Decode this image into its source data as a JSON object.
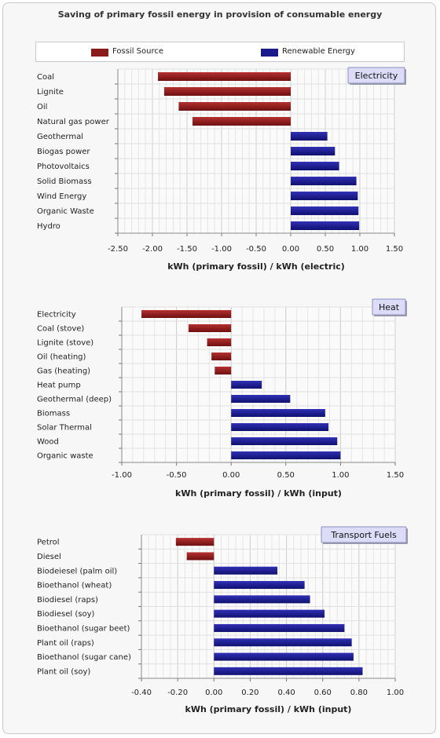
{
  "title": "Saving of primary fossil energy in provision of consumable energy",
  "legend": {
    "fossil": "Fossil Source",
    "renewable": "Renewable Energy"
  },
  "colors": {
    "fossil": "#8b1a1a",
    "renewable": "#1a1a8b"
  },
  "chart_data": [
    {
      "type": "bar",
      "orientation": "horizontal",
      "panel_label": "Electricity",
      "xlabel": "kWh (primary fossil) / kWh (electric)",
      "xlim": [
        -2.5,
        1.5
      ],
      "xticks": [
        "-2.50",
        "-2.00",
        "-1.50",
        "-1.00",
        "-0.50",
        "0.00",
        "0.50",
        "1.00",
        "1.50"
      ],
      "xtick_values": [
        -2.5,
        -2.0,
        -1.5,
        -1.0,
        -0.5,
        0.0,
        0.5,
        1.0,
        1.5
      ],
      "categories": [
        "Coal",
        "Lignite",
        "Oil",
        "Natural gas power",
        "Geothermal",
        "Biogas power",
        "Photovoltaics",
        "Solid Biomass",
        "Wind Energy",
        "Organic Waste",
        "Hydro"
      ],
      "values": [
        -1.92,
        -1.83,
        -1.62,
        -1.42,
        0.53,
        0.64,
        0.7,
        0.95,
        0.97,
        0.98,
        0.99
      ]
    },
    {
      "type": "bar",
      "orientation": "horizontal",
      "panel_label": "Heat",
      "xlabel": "kWh (primary fossil) / kWh (input)",
      "xlim": [
        -1.0,
        1.5
      ],
      "xticks": [
        "-1.00",
        "-0.50",
        "0.00",
        "0.50",
        "1.00",
        "1.50"
      ],
      "xtick_values": [
        -1.0,
        -0.5,
        0.0,
        0.5,
        1.0,
        1.5
      ],
      "categories": [
        "Electricity",
        "Coal (stove)",
        "Lignite (stove)",
        "Oil (heating)",
        "Gas (heating)",
        "Heat pump",
        "Geothermal (deep)",
        "Biomass",
        "Solar Thermal",
        "Wood",
        "Organic waste"
      ],
      "values": [
        -0.82,
        -0.39,
        -0.22,
        -0.18,
        -0.15,
        0.28,
        0.54,
        0.86,
        0.89,
        0.97,
        1.0
      ]
    },
    {
      "type": "bar",
      "orientation": "horizontal",
      "panel_label": "Transport Fuels",
      "xlabel": "kWh (primary fossil) / kWh (input)",
      "xlim": [
        -0.4,
        1.0
      ],
      "xticks": [
        "-0.40",
        "-0.20",
        "0.00",
        "0.20",
        "0.40",
        "0.60",
        "0.80",
        "1.00"
      ],
      "xtick_values": [
        -0.4,
        -0.2,
        0.0,
        0.2,
        0.4,
        0.6,
        0.8,
        1.0
      ],
      "categories": [
        "Petrol",
        "Diesel",
        "Biodeiesel (palm oil)",
        "Bioethanol (wheat)",
        "Biodiesel (raps)",
        "Biodiesel (soy)",
        "Bioethanol (sugar beet)",
        "Plant oil (raps)",
        "Bioethanol (sugar cane)",
        "Plant oil (soy)"
      ],
      "values": [
        -0.21,
        -0.15,
        0.35,
        0.5,
        0.53,
        0.61,
        0.72,
        0.76,
        0.77,
        0.82
      ]
    }
  ]
}
